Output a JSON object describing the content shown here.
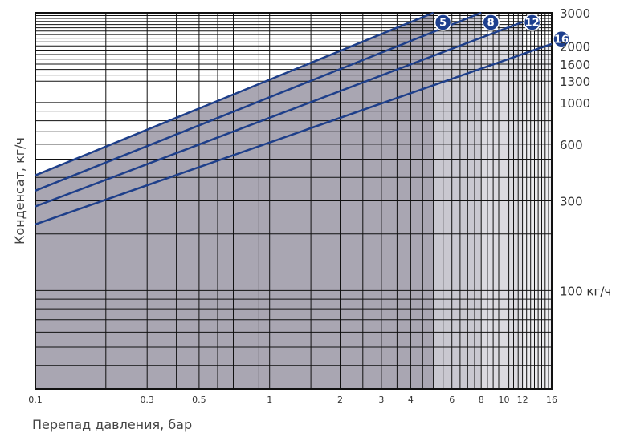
{
  "chart_data": {
    "type": "line",
    "title": "",
    "xlabel": "Перепад давления, бар",
    "ylabel": "Конденсат, кг/ч",
    "x_scale": "log",
    "y_scale": "log",
    "xlim": [
      0.1,
      16
    ],
    "ylim": [
      30,
      3000
    ],
    "grid": true,
    "x_ticks": [
      "0.1",
      "0.3",
      "0.5",
      "1",
      "2",
      "3",
      "4",
      "6",
      "8",
      "10",
      "12",
      "16"
    ],
    "y_ticks": [
      "3000",
      "2000",
      "1600",
      "1300",
      "1000",
      "600",
      "300",
      "100 кг/ч"
    ],
    "series": [
      {
        "name": "5",
        "x": [
          0.1,
          5
        ],
        "y": [
          410,
          3000
        ]
      },
      {
        "name": "8",
        "x": [
          0.1,
          8
        ],
        "y": [
          340,
          3000
        ]
      },
      {
        "name": "12",
        "x": [
          0.1,
          12
        ],
        "y": [
          280,
          2680
        ]
      },
      {
        "name": "16",
        "x": [
          0.1,
          16
        ],
        "y": [
          225,
          2050
        ]
      }
    ],
    "shaded_regions": [
      {
        "x": [
          0.1,
          5
        ],
        "color": "#a9a6b2"
      },
      {
        "x": [
          5,
          8
        ],
        "color": "#c9c8d0"
      },
      {
        "x": [
          8,
          12
        ],
        "color": "#dbdae0"
      },
      {
        "x": [
          12,
          16
        ],
        "color": "#ebebee"
      }
    ],
    "line_color": "#1e3f8a",
    "badge_color": "#1d3f8e"
  }
}
